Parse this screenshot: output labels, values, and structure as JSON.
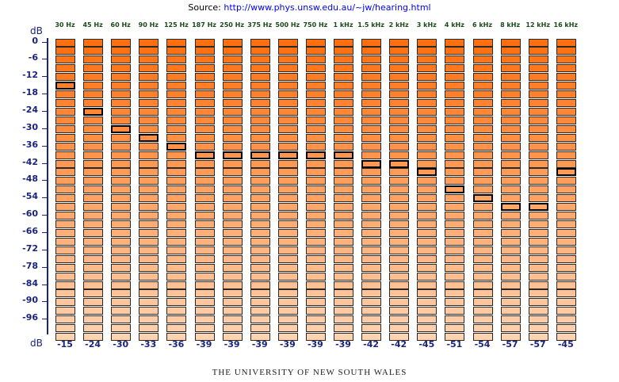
{
  "source_label": "Source:",
  "source_url": "http://www.phys.unsw.edu.au/~jw/hearing.html",
  "db_label": "dB",
  "footer": "THE UNIVERSITY OF NEW SOUTH WALES",
  "colors": {
    "top": "#ff6f0f",
    "bottom": "#ffd2b0",
    "axis": "#1a237e",
    "freq_text": "#1a4a1a"
  },
  "chart_data": {
    "type": "table",
    "title": "",
    "levels_db": [
      0,
      -3,
      -6,
      -9,
      -12,
      -15,
      -18,
      -21,
      -24,
      -27,
      -30,
      -33,
      -36,
      -39,
      -42,
      -45,
      -48,
      -51,
      -54,
      -57,
      -60,
      -63,
      -66,
      -69,
      -72,
      -75,
      -78,
      -81,
      -84,
      -87,
      -90,
      -93,
      -96,
      -99,
      -102
    ],
    "y_tick_labels": [
      "0",
      "-6",
      "-12",
      "-18",
      "-24",
      "-30",
      "-36",
      "-42",
      "-48",
      "-54",
      "-60",
      "-66",
      "-72",
      "-78",
      "-84",
      "-90",
      "-96"
    ],
    "frequencies": [
      "30 Hz",
      "45 Hz",
      "60 Hz",
      "90 Hz",
      "125 Hz",
      "187 Hz",
      "250 Hz",
      "375 Hz",
      "500 Hz",
      "750 Hz",
      "1 kHz",
      "1.5 kHz",
      "2 kHz",
      "3 kHz",
      "4 kHz",
      "6 kHz",
      "8 kHz",
      "12 kHz",
      "16 kHz"
    ],
    "thresholds_db": [
      -15,
      -24,
      -30,
      -33,
      -36,
      -39,
      -39,
      -39,
      -39,
      -39,
      -39,
      -42,
      -42,
      -45,
      -51,
      -54,
      -57,
      -57,
      -45
    ]
  }
}
